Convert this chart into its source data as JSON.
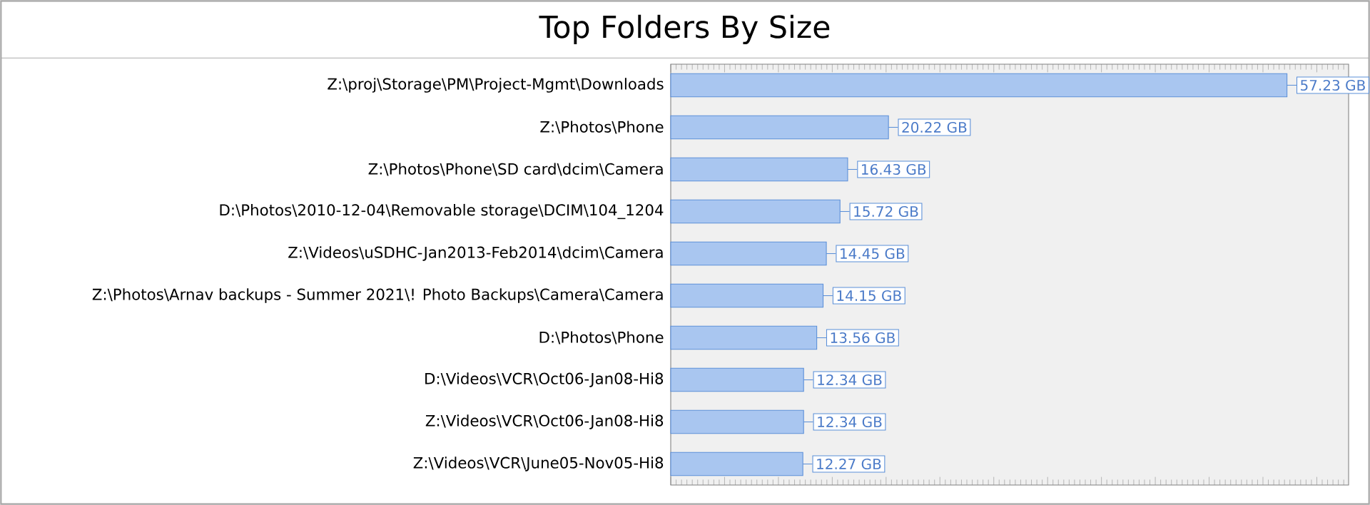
{
  "chart_data": {
    "type": "bar",
    "orientation": "horizontal",
    "title": "Top Folders By Size",
    "categories": [
      "Z:\\proj\\Storage\\PM\\Project-Mgmt\\Downloads",
      "Z:\\Photos\\Phone",
      "Z:\\Photos\\Phone\\SD card\\dcim\\Camera",
      "D:\\Photos\\2010-12-04\\Removable storage\\DCIM\\104_1204",
      "Z:\\Videos\\uSDHC-Jan2013-Feb2014\\dcim\\Camera",
      "Z:\\Photos\\Arnav backups - Summer 2021\\! Photo Backups\\Camera\\Camera",
      "D:\\Photos\\Phone",
      "D:\\Videos\\VCR\\Oct06-Jan08-Hi8",
      "Z:\\Videos\\VCR\\Oct06-Jan08-Hi8",
      "Z:\\Videos\\VCR\\June05-Nov05-Hi8"
    ],
    "values": [
      57.23,
      20.22,
      16.43,
      15.72,
      14.45,
      14.15,
      13.56,
      12.34,
      12.34,
      12.27
    ],
    "value_labels": [
      "57.23 GB",
      "20.22 GB",
      "16.43 GB",
      "15.72 GB",
      "14.45 GB",
      "14.15 GB",
      "13.56 GB",
      "12.34 GB",
      "12.34 GB",
      "12.27 GB"
    ],
    "color": "#a9c6f0",
    "tick_labels": "y"
  }
}
